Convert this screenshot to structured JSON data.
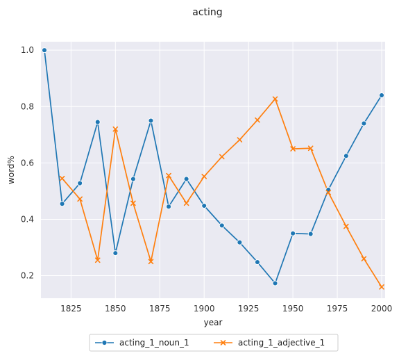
{
  "chart_data": {
    "type": "line",
    "title": "acting",
    "xlabel": "year",
    "ylabel": "word%",
    "xlim": [
      1810,
      2000
    ],
    "ylim": [
      0.12,
      1.03
    ],
    "xticks": [
      1825,
      1850,
      1875,
      1900,
      1925,
      1950,
      1975,
      2000
    ],
    "yticks": [
      0.2,
      0.4,
      0.6,
      0.8,
      1.0
    ],
    "xtick_labels": [
      "1825",
      "1850",
      "1875",
      "1900",
      "1925",
      "1950",
      "1975",
      "2000"
    ],
    "ytick_labels": [
      "0.2",
      "0.4",
      "0.6",
      "0.8",
      "1.0"
    ],
    "grid": true,
    "legend_position": "bottom-center",
    "series": [
      {
        "name": "acting_1_noun_1",
        "color": "#1f77b4",
        "marker": "circle",
        "x": [
          1810,
          1820,
          1830,
          1840,
          1850,
          1860,
          1870,
          1880,
          1890,
          1900,
          1910,
          1920,
          1930,
          1940,
          1950,
          1960,
          1970,
          1980,
          1990,
          2000
        ],
        "y": [
          1.0,
          0.455,
          0.528,
          0.745,
          0.28,
          0.543,
          0.75,
          0.445,
          0.543,
          0.448,
          0.378,
          0.318,
          0.248,
          0.173,
          0.35,
          0.348,
          0.505,
          0.625,
          0.74,
          0.84
        ]
      },
      {
        "name": "acting_1_adjective_1",
        "color": "#ff7f0e",
        "marker": "x",
        "x": [
          1820,
          1830,
          1840,
          1850,
          1860,
          1870,
          1880,
          1890,
          1900,
          1910,
          1920,
          1930,
          1940,
          1950,
          1960,
          1970,
          1980,
          1990,
          2000
        ],
        "y": [
          0.545,
          0.472,
          0.255,
          0.72,
          0.457,
          0.25,
          0.555,
          0.457,
          0.552,
          0.622,
          0.682,
          0.752,
          0.827,
          0.65,
          0.652,
          0.495,
          0.375,
          0.26,
          0.16
        ]
      }
    ]
  }
}
